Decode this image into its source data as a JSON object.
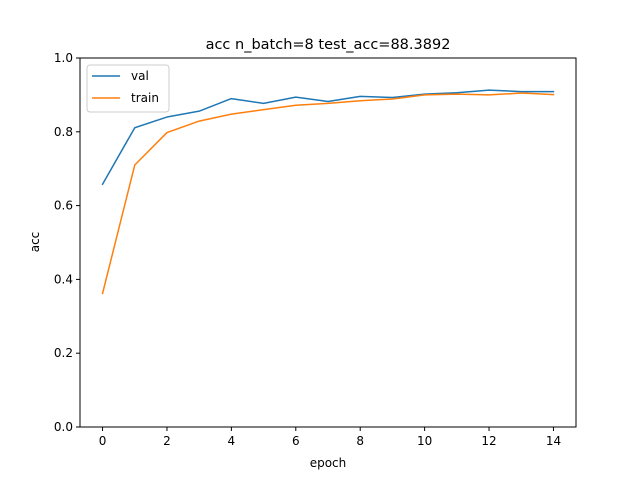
{
  "chart_data": {
    "type": "line",
    "title": "acc n_batch=8 test_acc=88.3892",
    "xlabel": "epoch",
    "ylabel": "acc",
    "xlim": [
      -0.7,
      14.7
    ],
    "ylim": [
      0.0,
      1.0
    ],
    "xticks": [
      0,
      2,
      4,
      6,
      8,
      10,
      12,
      14
    ],
    "yticks": [
      0.0,
      0.2,
      0.4,
      0.6,
      0.8,
      1.0
    ],
    "xtick_labels": [
      "0",
      "2",
      "4",
      "6",
      "8",
      "10",
      "12",
      "14"
    ],
    "ytick_labels": [
      "0.0",
      "0.2",
      "0.4",
      "0.6",
      "0.8",
      "1.0"
    ],
    "grid": false,
    "legend_position": "top-left",
    "x": [
      0,
      1,
      2,
      3,
      4,
      5,
      6,
      7,
      8,
      9,
      10,
      11,
      12,
      13,
      14
    ],
    "series": [
      {
        "name": "val",
        "color": "#1f77b4",
        "values": [
          0.658,
          0.811,
          0.84,
          0.856,
          0.89,
          0.877,
          0.894,
          0.882,
          0.896,
          0.893,
          0.902,
          0.906,
          0.913,
          0.909,
          0.909
        ]
      },
      {
        "name": "train",
        "color": "#ff7f0e",
        "values": [
          0.362,
          0.71,
          0.798,
          0.829,
          0.848,
          0.86,
          0.872,
          0.877,
          0.884,
          0.889,
          0.9,
          0.902,
          0.9,
          0.905,
          0.901
        ]
      }
    ]
  }
}
